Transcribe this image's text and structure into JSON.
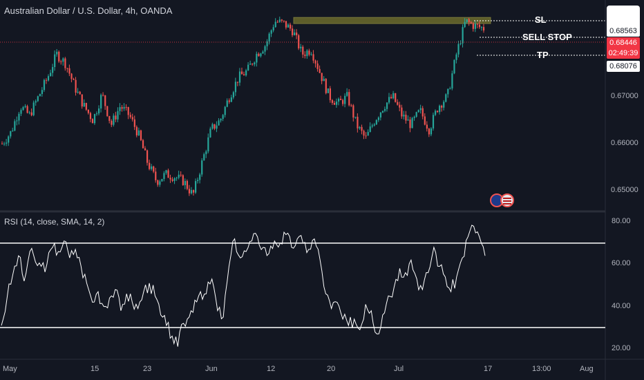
{
  "header": {
    "title": "Australian Dollar / U.S. Dollar, 4h, OANDA",
    "rsi_title": "RSI (14, close, SMA, 14, 2)"
  },
  "levels": {
    "sl_label": "SL",
    "sell_stop_label": "SELL STOP",
    "tp_label": "TP",
    "sl_price": "0.68563",
    "current_price": "0.68446",
    "countdown": "02:49:39",
    "tp_price": "0.68076"
  },
  "colors": {
    "background": "#131722",
    "bull": "#26a69a",
    "bear": "#ef5350",
    "price_badge": "#f23645",
    "zone": "#6b6a2c",
    "rsi_line": "#ffffff"
  },
  "chart_data": [
    {
      "type": "candlestick",
      "title": "Australian Dollar / U.S. Dollar, 4h, OANDA",
      "y_ticks": [
        "0.65000",
        "0.66000",
        "0.67000"
      ],
      "ylim": [
        0.6465,
        0.6905
      ],
      "x_ticks": [
        "May",
        "15",
        "23",
        "Jun",
        "12",
        "20",
        "Jul",
        "17",
        "13:00",
        "Aug"
      ],
      "close_path": [
        [
          "May",
          0.66
        ],
        [
          "May",
          0.6625
        ],
        [
          "May",
          0.668
        ],
        [
          "May",
          0.666
        ],
        [
          "May",
          0.67
        ],
        [
          "May",
          0.674
        ],
        [
          "May",
          0.679
        ],
        [
          "May",
          0.677
        ],
        [
          "15",
          0.672
        ],
        [
          "15",
          0.668
        ],
        [
          "15",
          0.665
        ],
        [
          "15",
          0.6705
        ],
        [
          "15",
          0.664
        ],
        [
          "15",
          0.668
        ],
        [
          "15",
          0.666
        ],
        [
          "23",
          0.662
        ],
        [
          "23",
          0.656
        ],
        [
          "23",
          0.652
        ],
        [
          "23",
          0.6535
        ],
        [
          "23",
          0.653
        ],
        [
          "23",
          0.652
        ],
        [
          "23",
          0.649
        ],
        [
          "Jun",
          0.656
        ],
        [
          "Jun",
          0.663
        ],
        [
          "Jun",
          0.665
        ],
        [
          "Jun",
          0.67
        ],
        [
          "Jun",
          0.674
        ],
        [
          "Jun",
          0.6755
        ],
        [
          "12",
          0.679
        ],
        [
          "12",
          0.681
        ],
        [
          "12",
          0.686
        ],
        [
          "12",
          0.6855
        ],
        [
          "12",
          0.684
        ],
        [
          "20",
          0.679
        ],
        [
          "20",
          0.68
        ],
        [
          "20",
          0.675
        ],
        [
          "20",
          0.67
        ],
        [
          "20",
          0.6685
        ],
        [
          "20",
          0.67
        ],
        [
          "20",
          0.664
        ],
        [
          "20",
          0.661
        ],
        [
          "Jul",
          0.665
        ],
        [
          "Jul",
          0.668
        ],
        [
          "Jul",
          0.67
        ],
        [
          "Jul",
          0.666
        ],
        [
          "Jul",
          0.664
        ],
        [
          "Jul",
          0.667
        ],
        [
          "Jul",
          0.663
        ],
        [
          "Jul",
          0.668
        ],
        [
          "Jul",
          0.67
        ],
        [
          "Jul",
          0.679
        ],
        [
          "Jul",
          0.686
        ],
        [
          "Jul",
          0.685
        ],
        [
          "Jul",
          0.6845
        ]
      ],
      "annotations": {
        "SL": 0.68563,
        "SELL STOP": 0.68446,
        "TP": 0.68076
      },
      "zone": {
        "from": 0.6855,
        "to": 0.6868
      }
    },
    {
      "type": "line",
      "title": "RSI (14, close, SMA, 14, 2)",
      "y_ticks": [
        "20.00",
        "40.00",
        "60.00",
        "80.00"
      ],
      "ylim": [
        15,
        85
      ],
      "bands": [
        70,
        30
      ],
      "values": [
        31,
        44,
        55,
        64,
        52,
        66,
        61,
        59,
        60,
        68,
        66,
        71,
        63,
        67,
        59,
        51,
        42,
        47,
        40,
        44,
        48,
        38,
        46,
        42,
        39,
        47,
        51,
        45,
        36,
        31,
        26,
        21,
        32,
        35,
        43,
        47,
        46,
        53,
        38,
        35,
        59,
        72,
        63,
        66,
        71,
        73,
        68,
        65,
        71,
        70,
        74,
        68,
        72,
        70,
        67,
        72,
        62,
        46,
        39,
        42,
        34,
        31,
        34,
        29,
        41,
        38,
        27,
        36,
        45,
        49,
        58,
        56,
        62,
        53,
        48,
        56,
        68,
        59,
        54,
        47,
        54,
        63,
        73,
        78,
        73,
        64
      ]
    }
  ]
}
